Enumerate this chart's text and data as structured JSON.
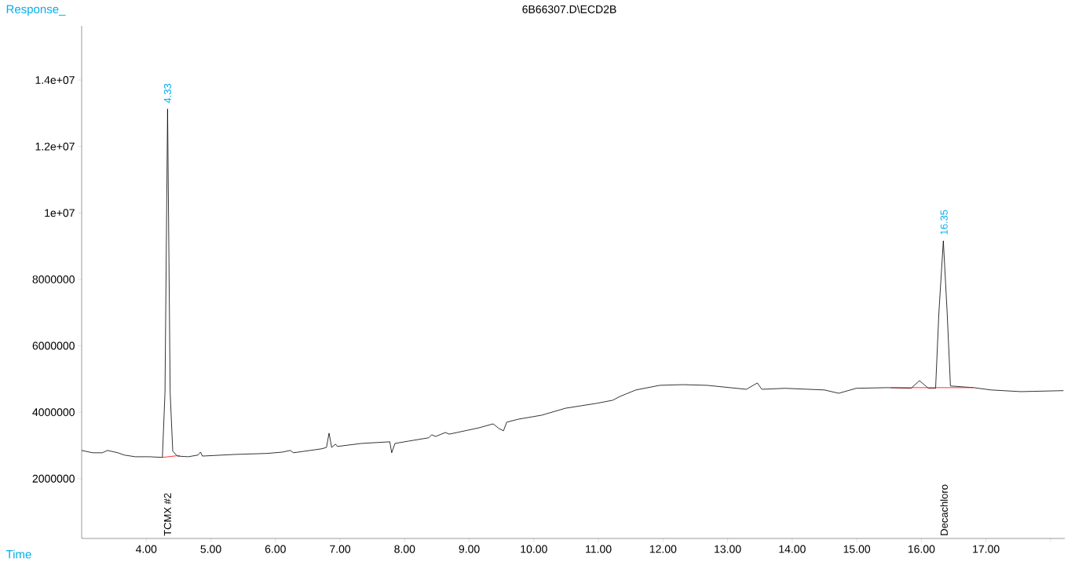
{
  "chart_data": {
    "type": "line",
    "title": "6B66307.D\\ECD2B",
    "xlabel": "Time",
    "ylabel": "Response_",
    "xlim": [
      3.0,
      18.22
    ],
    "ylim": [
      200000,
      15630000
    ],
    "xticks": [
      {
        "value": 4,
        "label": "4.00"
      },
      {
        "value": 5,
        "label": "5.00"
      },
      {
        "value": 6,
        "label": "6.00"
      },
      {
        "value": 7,
        "label": "7.00"
      },
      {
        "value": 8,
        "label": "8.00"
      },
      {
        "value": 9,
        "label": "9.00"
      },
      {
        "value": 10,
        "label": "10.00"
      },
      {
        "value": 11,
        "label": "11.00"
      },
      {
        "value": 12,
        "label": "12.00"
      },
      {
        "value": 13,
        "label": "13.00"
      },
      {
        "value": 14,
        "label": "14.00"
      },
      {
        "value": 15,
        "label": "15.00"
      },
      {
        "value": 16,
        "label": "16.00"
      },
      {
        "value": 17,
        "label": "17.00"
      },
      {
        "value": 18,
        "label": null
      }
    ],
    "yticks": [
      2000000,
      4000000,
      6000000,
      8000000,
      {
        "value": 10000000,
        "label": "1e+07"
      },
      {
        "value": 12000000,
        "label": "1.2e+07"
      },
      {
        "value": 14000000,
        "label": "1.4e+07"
      }
    ],
    "grid": false,
    "marker": "none",
    "line_style": "solid",
    "series": [
      {
        "color": "#000000",
        "x": [
          3.0,
          3.17,
          3.32,
          3.4,
          3.56,
          3.66,
          3.83,
          4.05,
          4.25,
          4.29,
          4.33,
          4.37,
          4.41,
          4.48,
          4.65,
          4.8,
          4.84,
          4.87,
          5.38,
          5.87,
          6.11,
          6.23,
          6.28,
          6.72,
          6.79,
          6.83,
          6.87,
          6.93,
          6.96,
          7.33,
          7.77,
          7.8,
          7.85,
          8.06,
          8.37,
          8.42,
          8.48,
          8.63,
          8.69,
          9.15,
          9.37,
          9.46,
          9.53,
          9.58,
          9.76,
          10.12,
          10.49,
          10.98,
          11.22,
          11.34,
          11.58,
          11.95,
          12.31,
          12.68,
          13.29,
          13.46,
          13.53,
          13.89,
          14.5,
          14.72,
          14.99,
          15.47,
          15.84,
          15.97,
          16.11,
          16.22,
          16.27,
          16.34,
          16.4,
          16.45,
          16.81,
          17.08,
          17.54,
          18.2
        ],
        "values": [
          2850000,
          2780000,
          2780000,
          2850000,
          2780000,
          2710000,
          2660000,
          2660000,
          2640000,
          4600000,
          13130000,
          4600000,
          2830000,
          2680000,
          2660000,
          2710000,
          2800000,
          2680000,
          2730000,
          2760000,
          2800000,
          2850000,
          2780000,
          2900000,
          2940000,
          3370000,
          2940000,
          3040000,
          2970000,
          3060000,
          3110000,
          2780000,
          3060000,
          3130000,
          3230000,
          3320000,
          3270000,
          3390000,
          3340000,
          3530000,
          3650000,
          3510000,
          3440000,
          3700000,
          3790000,
          3910000,
          4120000,
          4270000,
          4360000,
          4480000,
          4670000,
          4810000,
          4830000,
          4810000,
          4690000,
          4880000,
          4690000,
          4720000,
          4670000,
          4570000,
          4720000,
          4740000,
          4720000,
          4950000,
          4720000,
          4720000,
          6960000,
          9160000,
          6960000,
          4790000,
          4740000,
          4670000,
          4620000,
          4650000
        ]
      },
      {
        "color": "#ff0000",
        "x": [
          4.25,
          4.52
        ],
        "values": [
          2640000,
          2700000
        ]
      },
      {
        "color": "#ff0000",
        "x": [
          15.53,
          16.8
        ],
        "values": [
          4740000,
          4740000
        ]
      }
    ],
    "annotations": [
      {
        "text": "4.33",
        "x": 4.33,
        "y": 13130000
      },
      {
        "text": "16.35",
        "x": 16.35,
        "y": 9160000
      },
      "TCMX #2",
      "Decachloro"
    ]
  }
}
